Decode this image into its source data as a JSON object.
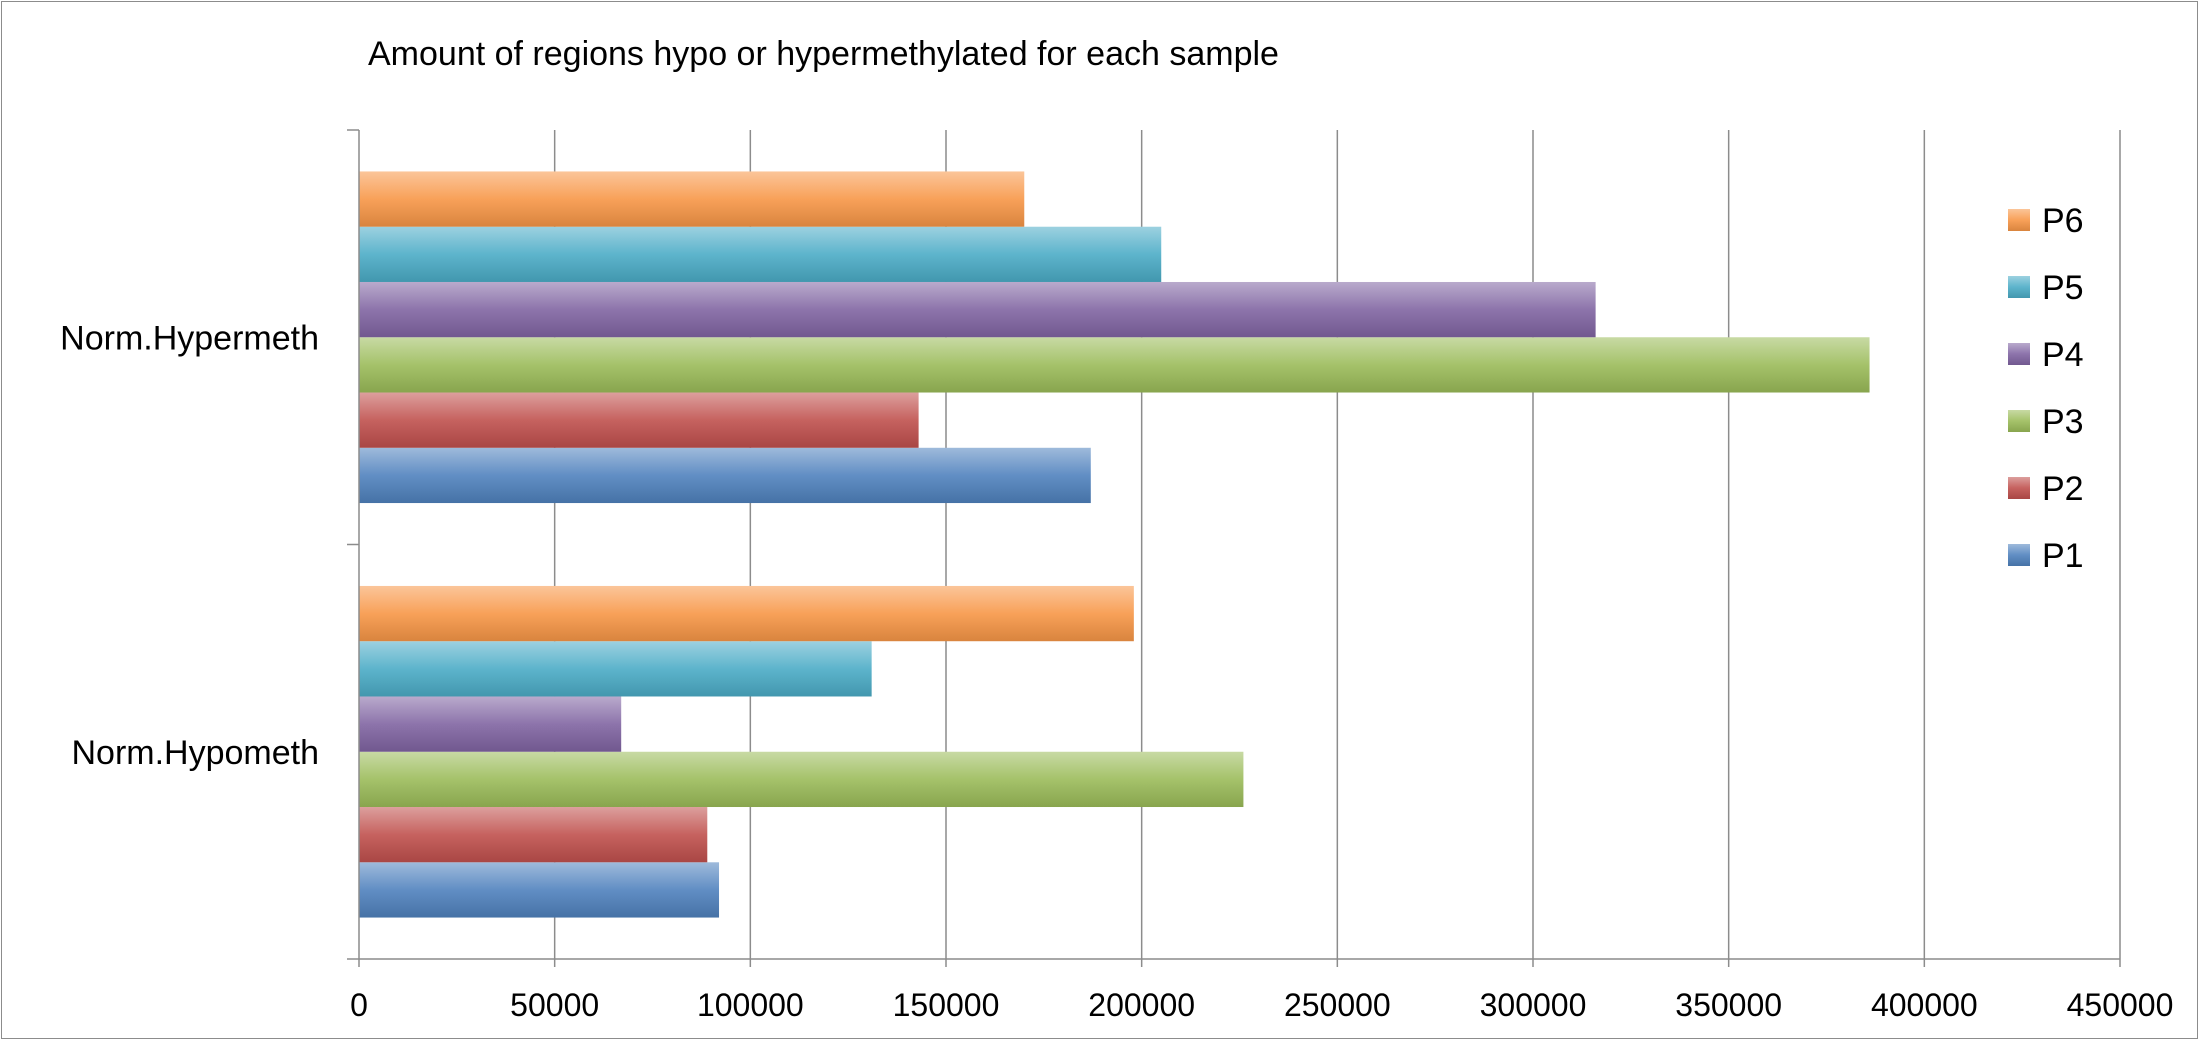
{
  "chart_data": {
    "type": "bar",
    "orientation": "horizontal",
    "title": "Amount of regions hypo or hypermethylated for each sample",
    "categories": [
      "Norm.Hypometh",
      "Norm.Hypermeth"
    ],
    "series": [
      {
        "name": "P1",
        "values": [
          92000,
          187000
        ],
        "color": "#4f81bd"
      },
      {
        "name": "P2",
        "values": [
          89000,
          143000
        ],
        "color": "#c0504d"
      },
      {
        "name": "P3",
        "values": [
          226000,
          386000
        ],
        "color": "#9bbb59"
      },
      {
        "name": "P4",
        "values": [
          67000,
          316000
        ],
        "color": "#8064a2"
      },
      {
        "name": "P5",
        "values": [
          131000,
          205000
        ],
        "color": "#4bacc6"
      },
      {
        "name": "P6",
        "values": [
          198000,
          170000
        ],
        "color": "#f79646"
      }
    ],
    "xlim": [
      0,
      450000
    ],
    "x_ticks": [
      "0",
      "50000",
      "100000",
      "150000",
      "200000",
      "250000",
      "300000",
      "350000",
      "400000",
      "450000"
    ],
    "legend_position": "right",
    "grid": true
  }
}
